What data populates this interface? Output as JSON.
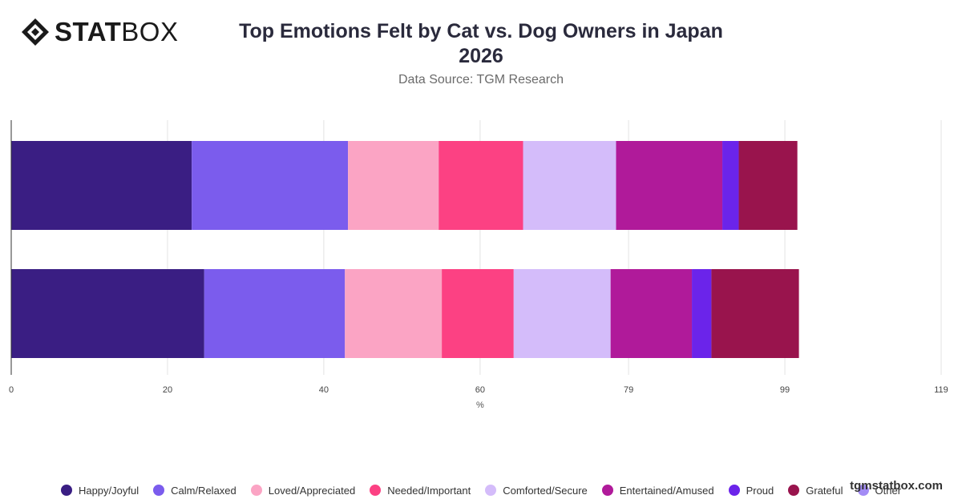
{
  "brand": {
    "name_bold": "STAT",
    "name_regular": "BOX",
    "icon": "diamond-logo-icon"
  },
  "watermark": "tgmstatbox.com",
  "chart_data": {
    "type": "bar",
    "orientation": "horizontal",
    "stacked": true,
    "title_line1": "Top Emotions Felt by Cat vs. Dog Owners in Japan",
    "title_line2": "2026",
    "subtitle": "Data Source: TGM Research",
    "xlabel": "%",
    "xlim": [
      0,
      119
    ],
    "xticks": [
      0,
      20,
      40,
      60,
      79,
      99,
      119
    ],
    "grid": true,
    "legend_position": "bottom",
    "categories": [
      "",
      ""
    ],
    "series": [
      {
        "name": "Happy/Joyful",
        "color": "#3a1e83",
        "values": [
          23.1,
          24.7
        ]
      },
      {
        "name": "Calm/Relaxed",
        "color": "#7b5ced",
        "values": [
          20.0,
          18.0
        ]
      },
      {
        "name": "Loved/Appreciated",
        "color": "#fba4c4",
        "values": [
          11.6,
          12.4
        ]
      },
      {
        "name": "Needed/Important",
        "color": "#fc4183",
        "values": [
          10.8,
          9.2
        ]
      },
      {
        "name": "Comforted/Secure",
        "color": "#d4bcfa",
        "values": [
          11.9,
          12.4
        ]
      },
      {
        "name": "Entertained/Amused",
        "color": "#b01a9a",
        "values": [
          13.6,
          10.4
        ]
      },
      {
        "name": "Proud",
        "color": "#6b24ea",
        "values": [
          2.1,
          2.5
        ]
      },
      {
        "name": "Grateful",
        "color": "#99144d",
        "values": [
          7.5,
          11.2
        ]
      },
      {
        "name": "Other",
        "color": "#a38cf5",
        "values": [
          0,
          0
        ]
      }
    ]
  }
}
